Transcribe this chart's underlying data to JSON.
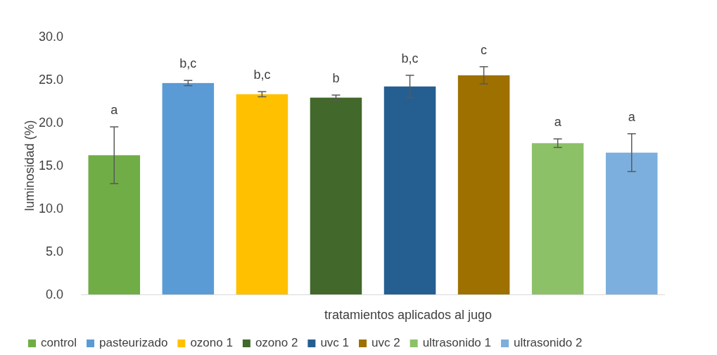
{
  "chart_data": {
    "type": "bar",
    "xlabel": "tratamientos aplicados al jugo",
    "ylabel": "luminosidad (%)",
    "categories": [
      null,
      null,
      null,
      null,
      null,
      null,
      null,
      null
    ],
    "series": [
      {
        "name": "control",
        "color": "#70ad47",
        "values": [
          16.2,
          null,
          null,
          null,
          null,
          null,
          null,
          null
        ],
        "errors": [
          3.3,
          null,
          null,
          null,
          null,
          null,
          null,
          null
        ]
      },
      {
        "name": "pasteurizado",
        "color": "#5b9bd5",
        "values": [
          null,
          24.6,
          null,
          null,
          null,
          null,
          null,
          null
        ],
        "errors": [
          null,
          0.3,
          null,
          null,
          null,
          null,
          null,
          null
        ]
      },
      {
        "name": "ozono 1",
        "color": "#ffc000",
        "values": [
          null,
          null,
          23.3,
          null,
          null,
          null,
          null,
          null
        ],
        "errors": [
          null,
          null,
          0.3,
          null,
          null,
          null,
          null,
          null
        ]
      },
      {
        "name": "ozono 2",
        "color": "#43682b",
        "values": [
          null,
          null,
          null,
          22.9,
          null,
          null,
          null,
          null
        ],
        "errors": [
          null,
          null,
          null,
          0.3,
          null,
          null,
          null,
          null
        ]
      },
      {
        "name": "uvc 1",
        "color": "#255e91",
        "values": [
          null,
          null,
          null,
          null,
          24.2,
          null,
          null,
          null
        ],
        "errors": [
          null,
          null,
          null,
          null,
          1.3,
          null,
          null,
          null
        ]
      },
      {
        "name": "uvc 2",
        "color": "#9e7000",
        "values": [
          null,
          null,
          null,
          null,
          null,
          25.5,
          null,
          null
        ],
        "errors": [
          null,
          null,
          null,
          null,
          null,
          1.0,
          null,
          null
        ]
      },
      {
        "name": "ultrasonido 1",
        "color": "#8cc168",
        "values": [
          null,
          null,
          null,
          null,
          null,
          null,
          17.6,
          null
        ],
        "errors": [
          null,
          null,
          null,
          null,
          null,
          null,
          0.5,
          null
        ]
      },
      {
        "name": "ultrasonido 2",
        "color": "#7cafdd",
        "values": [
          null,
          null,
          null,
          null,
          null,
          null,
          null,
          16.5
        ],
        "errors": [
          null,
          null,
          null,
          null,
          null,
          null,
          null,
          2.2
        ]
      }
    ],
    "ylim": [
      0,
      30
    ],
    "yticks": [
      {
        "value": 0,
        "label": "0.0"
      },
      {
        "value": 5,
        "label": "5.0"
      },
      {
        "value": 10,
        "label": "10.0"
      },
      {
        "value": 15,
        "label": "15.0"
      },
      {
        "value": 20,
        "label": "20.0"
      },
      {
        "value": 25,
        "label": "25.0"
      },
      {
        "value": 30,
        "label": "30.0"
      }
    ],
    "grid": false,
    "legend": "bottom",
    "annotations": [
      "a",
      "b,c",
      "b,c",
      "b",
      "b,c",
      "c",
      "a",
      "a"
    ]
  }
}
